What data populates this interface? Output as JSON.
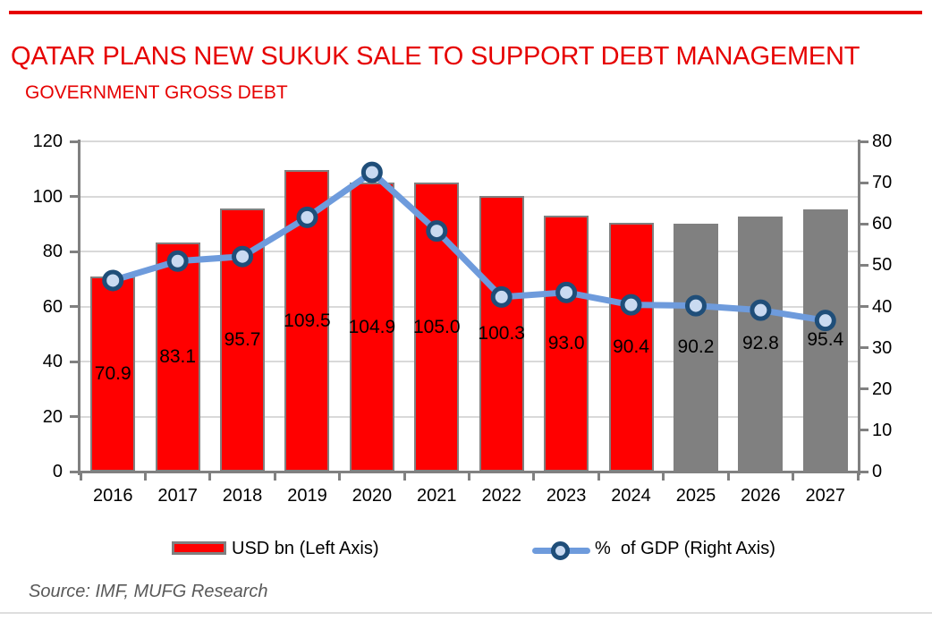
{
  "page": {
    "title": "QATAR PLANS NEW SUKUK SALE TO SUPPORT DEBT MANAGEMENT",
    "subtitle": "GOVERNMENT GROSS DEBT",
    "source": "Source: IMF, MUFG Research",
    "accent_red": "#E60000"
  },
  "legend": {
    "bar_label": "USD bn (Left Axis)",
    "line_label": "%  of GDP (Right Axis)"
  },
  "chart_data": {
    "type": "bar",
    "subtype": "bar+line-dual-axis",
    "title": "GOVERNMENT GROSS DEBT",
    "categories": [
      "2016",
      "2017",
      "2018",
      "2019",
      "2020",
      "2021",
      "2022",
      "2023",
      "2024",
      "2025",
      "2026",
      "2027"
    ],
    "series": [
      {
        "name": "USD bn (Left Axis)",
        "type": "bar",
        "axis": "left",
        "values": [
          70.9,
          83.1,
          95.7,
          109.5,
          104.9,
          105.0,
          100.3,
          93.0,
          90.4,
          90.2,
          92.8,
          95.4
        ],
        "labels_shown": true
      },
      {
        "name": "% of GDP (Right Axis)",
        "type": "line",
        "axis": "right",
        "values": [
          46.3,
          51.0,
          52.1,
          61.6,
          72.5,
          58.3,
          42.3,
          43.4,
          40.4,
          40.2,
          39.1,
          36.6
        ],
        "values_estimated_from_pixels": true
      }
    ],
    "forecast_from_index": 9,
    "left_axis": {
      "min": 0,
      "max": 120,
      "step": 20,
      "ticks": [
        0,
        20,
        40,
        60,
        80,
        100,
        120
      ]
    },
    "right_axis": {
      "min": 0,
      "max": 80,
      "step": 10,
      "ticks": [
        0,
        10,
        20,
        30,
        40,
        50,
        60,
        70,
        80
      ]
    },
    "grid": true,
    "legend_position": "bottom",
    "colors": {
      "bar_actual": "#FF0000",
      "bar_forecast": "#808080",
      "bar_border": "#808080",
      "line": "#6E9BDC",
      "marker_fill": "#C9DAF1",
      "marker_border": "#1F4E79",
      "gridline": "#D9D9D9",
      "axis": "#808080",
      "label_text": "#000000"
    }
  }
}
